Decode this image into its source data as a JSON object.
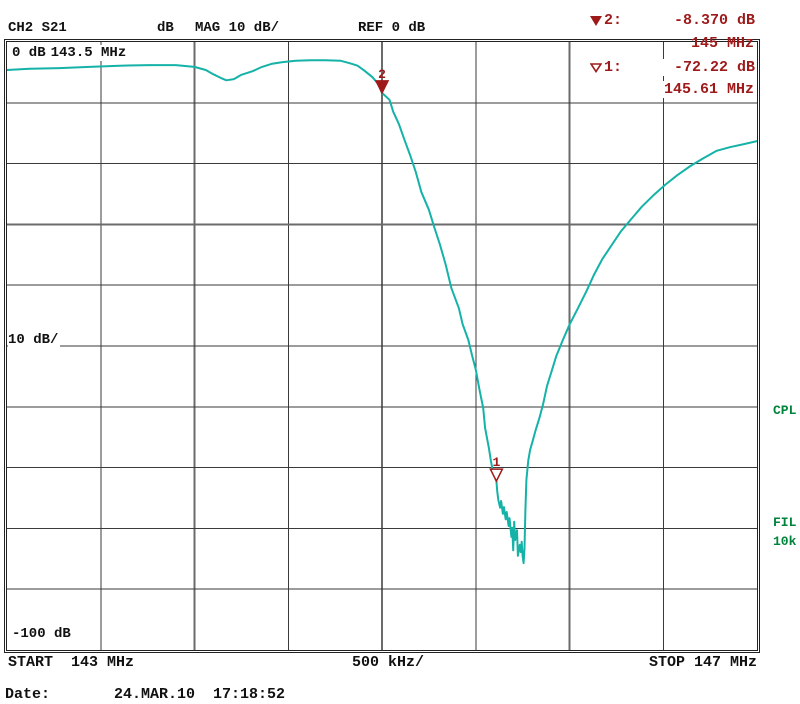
{
  "header": {
    "channel": "CH2 S21",
    "unit": "dB",
    "format": "MAG 10 dB/",
    "reference": "REF 0 dB"
  },
  "markers": [
    {
      "id": "2:",
      "value": "-8.370 dB",
      "freq": "145 MHz",
      "style": "filled"
    },
    {
      "id": "1:",
      "value": "-72.22 dB",
      "freq": "145.61 MHz",
      "style": "hollow"
    }
  ],
  "grid_labels": {
    "top_left_level": "0 dB",
    "top_left_freq": "143.5 MHz",
    "mid_left_scale": "10 dB/",
    "bottom_left_level": "-100 dB"
  },
  "axis": {
    "start": "START  143 MHz",
    "per_division": "500 kHz/",
    "stop": "STOP 147 MHz"
  },
  "side_labels": {
    "coupling": "CPL",
    "filter": "FIL",
    "filter_bw": "10k"
  },
  "footer": {
    "date_label": "Date:",
    "date_value": "24.MAR.10  17:18:52"
  },
  "colors": {
    "trace": "#15b2a8",
    "marker": "#9e1a1a",
    "green": "#00843c",
    "gridline": "#3a3a3a"
  },
  "chart_data": {
    "type": "line",
    "title": "CH2 S21  dB  MAG 10 dB/  REF 0 dB",
    "xlabel": "START 143 MHz ... STOP 147 MHz (500 kHz/div)",
    "ylabel": "Magnitude (10 dB/div, REF 0 dB)",
    "x_range": [
      143,
      147
    ],
    "y_range": [
      -100,
      0
    ],
    "x_divisions": 8,
    "y_divisions": 10,
    "grid": true,
    "legend_position": "none",
    "markers": [
      {
        "n": 2,
        "freq_mhz": 145.0,
        "db": -8.37,
        "style": "filled"
      },
      {
        "n": 1,
        "freq_mhz": 145.61,
        "db": -72.22,
        "style": "hollow"
      }
    ],
    "points": [
      [
        143.0,
        -4.6
      ],
      [
        143.12,
        -4.4
      ],
      [
        143.28,
        -4.3
      ],
      [
        143.44,
        -4.1
      ],
      [
        143.6,
        -3.9
      ],
      [
        143.76,
        -3.8
      ],
      [
        143.9,
        -3.8
      ],
      [
        144.0,
        -4.1
      ],
      [
        144.06,
        -4.6
      ],
      [
        144.1,
        -5.3
      ],
      [
        144.14,
        -5.9
      ],
      [
        144.17,
        -6.3
      ],
      [
        144.21,
        -6.1
      ],
      [
        144.25,
        -5.4
      ],
      [
        144.31,
        -4.8
      ],
      [
        144.36,
        -4.1
      ],
      [
        144.41,
        -3.6
      ],
      [
        144.47,
        -3.3
      ],
      [
        144.54,
        -3.1
      ],
      [
        144.62,
        -3.0
      ],
      [
        144.7,
        -3.0
      ],
      [
        144.78,
        -3.1
      ],
      [
        144.83,
        -3.5
      ],
      [
        144.87,
        -3.9
      ],
      [
        144.91,
        -4.8
      ],
      [
        144.95,
        -5.8
      ],
      [
        144.98,
        -6.9
      ],
      [
        145.0,
        -8.37
      ],
      [
        145.04,
        -9.5
      ],
      [
        145.06,
        -11.5
      ],
      [
        145.09,
        -13.5
      ],
      [
        145.12,
        -16.1
      ],
      [
        145.15,
        -18.6
      ],
      [
        145.18,
        -21.4
      ],
      [
        145.21,
        -24.7
      ],
      [
        145.25,
        -27.6
      ],
      [
        145.28,
        -30.6
      ],
      [
        145.31,
        -33.4
      ],
      [
        145.34,
        -36.7
      ],
      [
        145.37,
        -40.5
      ],
      [
        145.41,
        -43.8
      ],
      [
        145.43,
        -46.4
      ],
      [
        145.46,
        -49.0
      ],
      [
        145.48,
        -51.5
      ],
      [
        145.5,
        -53.9
      ],
      [
        145.52,
        -57.2
      ],
      [
        145.54,
        -60.2
      ],
      [
        145.55,
        -63.5
      ],
      [
        145.57,
        -66.8
      ],
      [
        145.58,
        -68.8
      ],
      [
        145.59,
        -70.4
      ],
      [
        145.61,
        -72.22
      ],
      [
        145.615,
        -74.0
      ],
      [
        145.62,
        -75.3
      ],
      [
        145.63,
        -76.6
      ],
      [
        145.635,
        -75.5
      ],
      [
        145.645,
        -77.6
      ],
      [
        145.65,
        -76.5
      ],
      [
        145.66,
        -78.5
      ],
      [
        145.665,
        -77.3
      ],
      [
        145.675,
        -79.6
      ],
      [
        145.68,
        -78.3
      ],
      [
        145.69,
        -81.4
      ],
      [
        145.695,
        -79.9
      ],
      [
        145.7,
        -83.6
      ],
      [
        145.705,
        -78.9
      ],
      [
        145.71,
        -81.9
      ],
      [
        145.72,
        -80.3
      ],
      [
        145.725,
        -84.5
      ],
      [
        145.735,
        -82.7
      ],
      [
        145.74,
        -83.9
      ],
      [
        145.745,
        -82.2
      ],
      [
        145.75,
        -84.5
      ],
      [
        145.755,
        -85.7
      ],
      [
        145.76,
        -83.2
      ],
      [
        145.765,
        -77.0
      ],
      [
        145.77,
        -72.0
      ],
      [
        145.78,
        -68.8
      ],
      [
        145.79,
        -67.1
      ],
      [
        145.805,
        -65.5
      ],
      [
        145.82,
        -63.8
      ],
      [
        145.84,
        -61.8
      ],
      [
        145.86,
        -59.4
      ],
      [
        145.88,
        -56.6
      ],
      [
        145.905,
        -54.1
      ],
      [
        145.93,
        -51.6
      ],
      [
        145.965,
        -49.0
      ],
      [
        146.0,
        -46.5
      ],
      [
        146.045,
        -43.8
      ],
      [
        146.09,
        -41.0
      ],
      [
        146.13,
        -38.3
      ],
      [
        146.175,
        -35.7
      ],
      [
        146.225,
        -33.4
      ],
      [
        146.275,
        -31.1
      ],
      [
        146.33,
        -29.1
      ],
      [
        146.385,
        -27.1
      ],
      [
        146.445,
        -25.3
      ],
      [
        146.51,
        -23.5
      ],
      [
        146.575,
        -21.9
      ],
      [
        146.645,
        -20.4
      ],
      [
        146.715,
        -19.1
      ],
      [
        146.785,
        -17.9
      ],
      [
        146.855,
        -17.3
      ],
      [
        146.93,
        -16.8
      ],
      [
        147.0,
        -16.3
      ]
    ]
  }
}
